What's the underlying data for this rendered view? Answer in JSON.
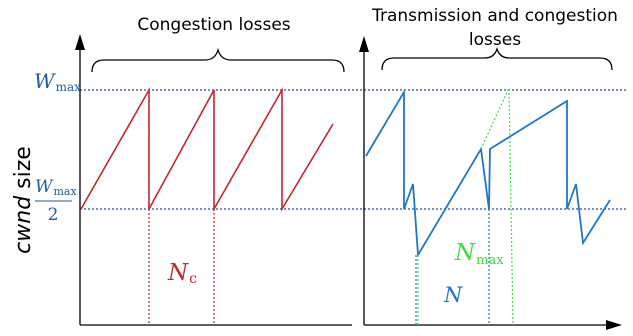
{
  "left_panel": {
    "title": "Congestion losses",
    "marker": {
      "main": "N",
      "sub": "c"
    }
  },
  "right_panel": {
    "title_line1": "Transmission and congestion",
    "title_line2": "losses",
    "marker_max": {
      "main": "N",
      "sub": "max"
    },
    "marker_n": "N"
  },
  "y_axis": {
    "label_italic": "cwnd",
    "label_rest": " size",
    "wmax": {
      "main": "W",
      "sub": "max"
    },
    "wmax_half": {
      "main": "W",
      "sub": "max",
      "denominator": "2"
    }
  },
  "colors": {
    "left_series": "#c0282d",
    "right_series": "#1f78c4",
    "nmax_line": "#3ddc3d",
    "guide_lines": "#2b4f8c",
    "axis": "#000000"
  }
}
